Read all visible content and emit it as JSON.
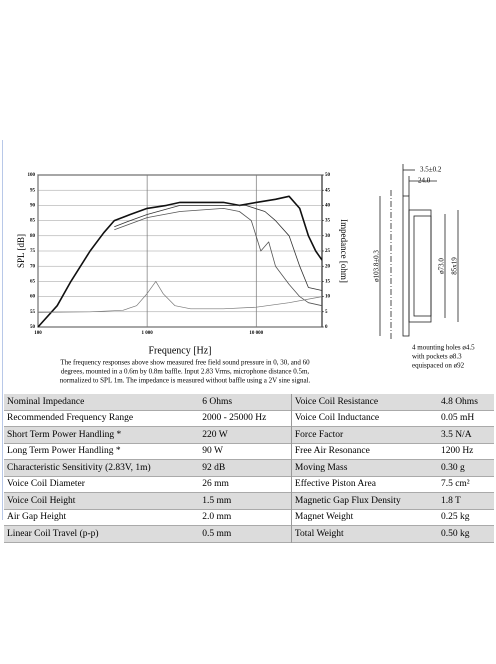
{
  "chart_data": {
    "type": "line",
    "xlabel": "Frequency [Hz]",
    "ylabel": "SPL [dB]",
    "y2label": "Impedance [ohm]",
    "log_x": true,
    "grid": true,
    "xlim": [
      100,
      40000
    ],
    "xticks": [
      100,
      {
        "value": 1000,
        "label": "1 000"
      },
      {
        "value": 10000,
        "label": "10 000"
      }
    ],
    "ylim": [
      50,
      100
    ],
    "yticks": [
      50,
      55,
      60,
      65,
      70,
      75,
      80,
      85,
      90,
      95,
      100
    ],
    "y2lim": [
      0,
      50
    ],
    "y2ticks": [
      0,
      5,
      10,
      15,
      20,
      25,
      30,
      35,
      40,
      45,
      50
    ],
    "series": [
      {
        "color": "#111111",
        "width": 1.6,
        "x": [
          100,
          150,
          200,
          300,
          400,
          500,
          700,
          1000,
          1500,
          2000,
          3000,
          5000,
          7000,
          10000,
          15000,
          20000,
          25000,
          30000,
          35000,
          40000
        ],
        "values": [
          50,
          57,
          65,
          75,
          81,
          85,
          87,
          89,
          90,
          91,
          91,
          91,
          90,
          91,
          92,
          93,
          89,
          80,
          75,
          72
        ]
      },
      {
        "color": "#333333",
        "width": 0.8,
        "x": [
          500,
          700,
          1000,
          2000,
          5000,
          8000,
          12000,
          15000,
          20000,
          25000,
          30000,
          40000
        ],
        "values": [
          83,
          85,
          87,
          90,
          90,
          90,
          88,
          85,
          80,
          70,
          63,
          62
        ]
      },
      {
        "color": "#555555",
        "width": 0.8,
        "x": [
          500,
          1000,
          2000,
          5000,
          7000,
          9000,
          11000,
          13000,
          15000,
          20000,
          25000,
          30000,
          40000
        ],
        "values": [
          82,
          86,
          88,
          89,
          88,
          85,
          75,
          78,
          70,
          64,
          60,
          58,
          57
        ]
      },
      {
        "color": "#777777",
        "width": 0.7,
        "axis": "y2",
        "x": [
          100,
          300,
          600,
          800,
          1000,
          1200,
          1400,
          1800,
          2500,
          5000,
          10000,
          20000,
          40000
        ],
        "values": [
          4.8,
          5,
          5.5,
          7,
          11,
          15,
          11,
          7,
          6,
          6,
          6.5,
          8,
          10
        ]
      }
    ]
  },
  "caption": [
    "The frequency responses above show measured free field sound pressure in 0, 30, and 60",
    "degrees, mounted in a 0.6m by 0.8m baffle. Input 2.83 Vrms, microphone distance 0.5m,",
    "normalized to SPL 1m. The impedance is measured without baffle using a 2V sine signal."
  ],
  "drawing": {
    "width": "3.5±0.2",
    "depth": "24.0",
    "outer": "ø103.8±0.3",
    "inner": "ø73.0",
    "rect": "85x19",
    "note": [
      "4 mounting holes ø4.5",
      "with pockets ø8.3",
      "equispaced on ø92"
    ]
  },
  "table": {
    "rows": [
      [
        "Nominal Impedance",
        "6 Ohms",
        "Voice Coil Resistance",
        "4.8 Ohms"
      ],
      [
        "Recommended Frequency Range",
        "2000 - 25000 Hz",
        "Voice Coil Inductance",
        "0.05 mH"
      ],
      [
        "Short Term Power Handling *",
        "220 W",
        "Force Factor",
        "3.5 N/A"
      ],
      [
        "Long Term Power Handling *",
        "90 W",
        "Free Air Resonance",
        "1200 Hz"
      ],
      [
        "Characteristic Sensitivity (2.83V, 1m)",
        "92 dB",
        "Moving Mass",
        "0.30 g"
      ],
      [
        "Voice Coil Diameter",
        "26 mm",
        "Effective Piston Area",
        "7.5 cm²"
      ],
      [
        "Voice Coil Height",
        "1.5 mm",
        "Magnetic Gap Flux Density",
        "1.8 T"
      ],
      [
        "Air Gap Height",
        "2.0 mm",
        "Magnet Weight",
        "0.25 kg"
      ],
      [
        "Linear Coil Travel (p-p)",
        "0.5 mm",
        "Total Weight",
        "0.50 kg"
      ]
    ]
  }
}
